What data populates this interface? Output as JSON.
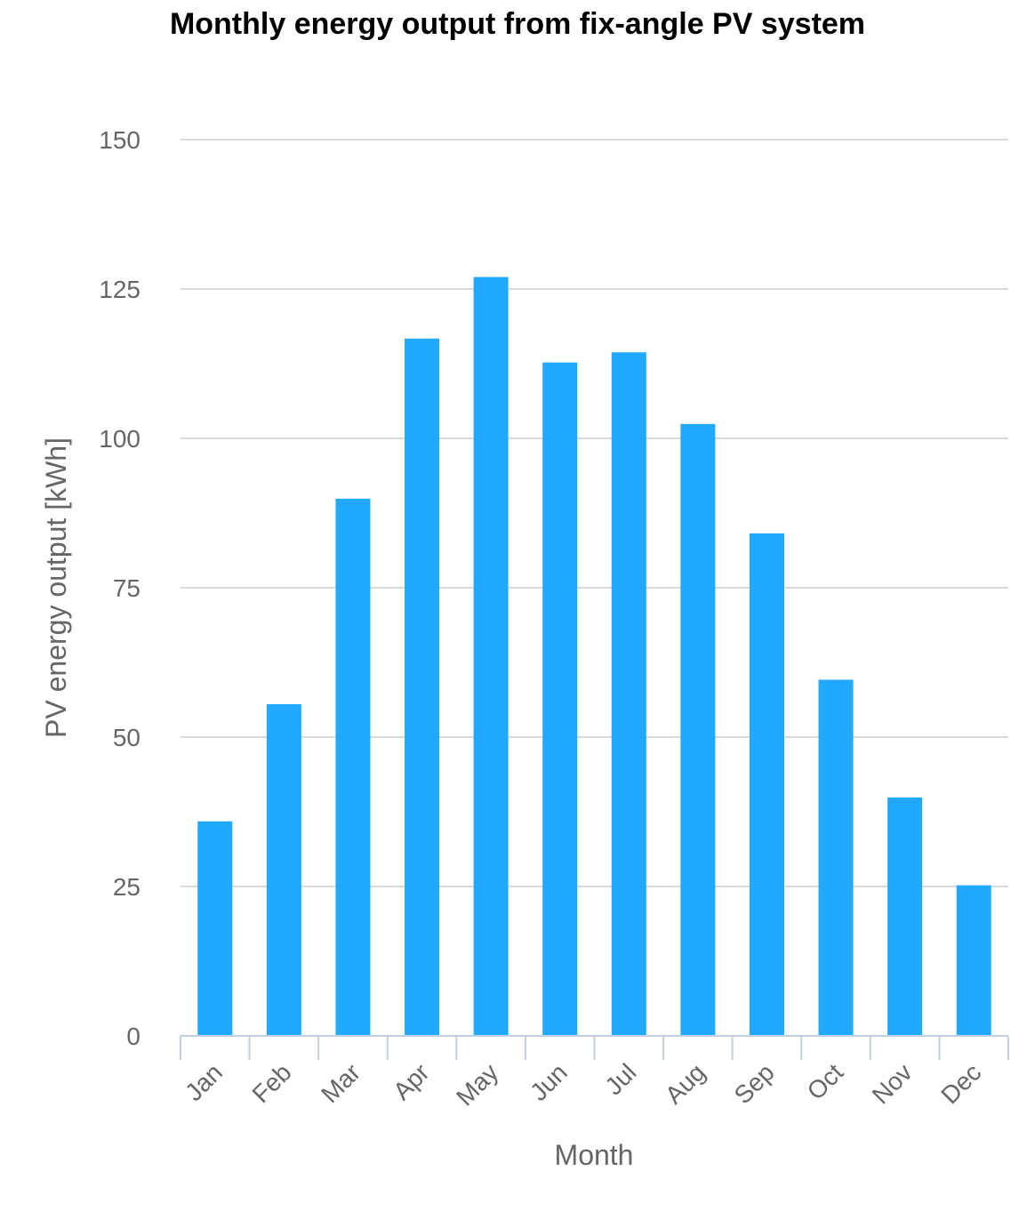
{
  "chart_data": {
    "type": "bar",
    "title": "Monthly energy output from fix-angle PV system",
    "xlabel": "Month",
    "ylabel": "PV energy output [kWh]",
    "categories": [
      "Jan",
      "Feb",
      "Mar",
      "Apr",
      "May",
      "Jun",
      "Jul",
      "Aug",
      "Sep",
      "Oct",
      "Nov",
      "Dec"
    ],
    "values": [
      35.9,
      55.5,
      89.9,
      116.7,
      127.0,
      112.7,
      114.4,
      102.4,
      84.1,
      59.6,
      39.9,
      25.2
    ],
    "ylim": [
      0,
      150
    ],
    "yticks": [
      "0",
      "25",
      "50",
      "75",
      "100",
      "125",
      "150"
    ],
    "grid": true,
    "legend": "none",
    "colors": {
      "bar": "#21a9ff",
      "grid": "#d9d9d9",
      "axis": "#c0d0e0",
      "text": "#666666",
      "title": "#000000"
    }
  }
}
